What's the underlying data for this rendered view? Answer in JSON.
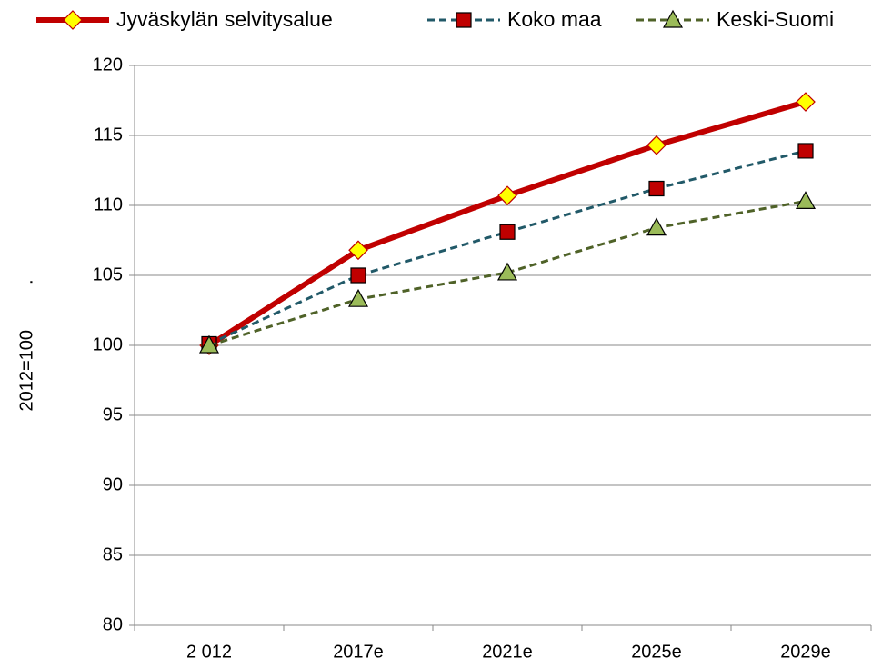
{
  "chart_data": {
    "type": "line",
    "y_label": "2012=100         .",
    "categories": [
      "2 012",
      "2017e",
      "2021e",
      "2025e",
      "2029e"
    ],
    "series": [
      {
        "name": "Jyväskylän selvitysalue",
        "color": "#c00000",
        "marker": "diamond",
        "marker_color": "#ffff00",
        "dashed": false,
        "values": [
          100,
          106.8,
          110.7,
          114.3,
          117.4
        ]
      },
      {
        "name": "Koko maa",
        "color": "#215968",
        "marker": "square",
        "marker_color": "#c00000",
        "dashed": true,
        "values": [
          100.1,
          105,
          108.1,
          111.2,
          113.9
        ]
      },
      {
        "name": "Keski-Suomi",
        "color": "#4f6228",
        "marker": "triangle",
        "marker_color": "#9bbb59",
        "dashed": true,
        "values": [
          100,
          103.3,
          105.2,
          108.4,
          110.3
        ]
      }
    ],
    "ylim": [
      80,
      120
    ],
    "yticks": [
      80,
      85,
      90,
      95,
      100,
      105,
      110,
      115,
      120
    ],
    "grid": true,
    "legend": "top"
  }
}
